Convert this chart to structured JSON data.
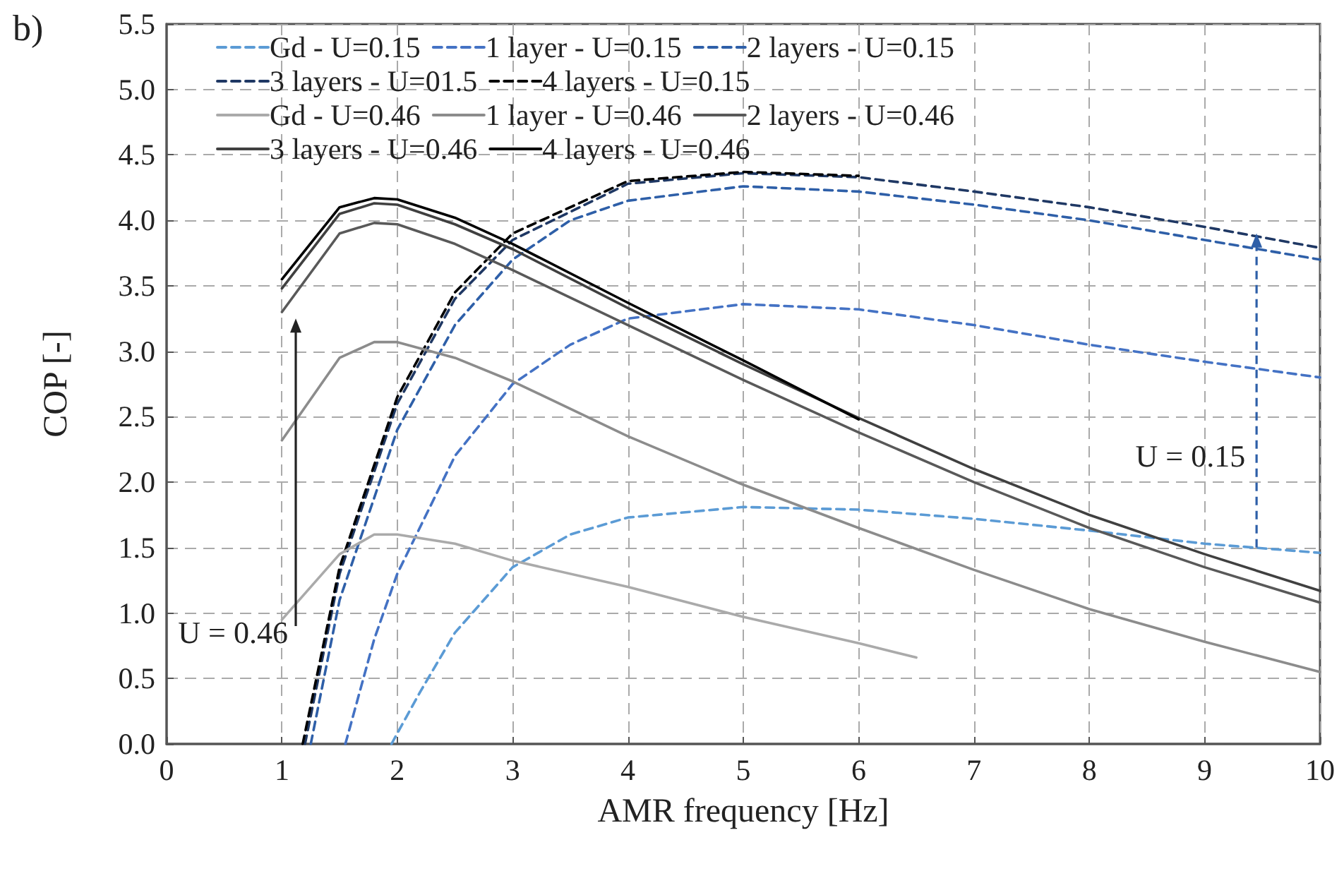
{
  "chart_data": {
    "type": "line",
    "title": "b)",
    "xlabel": "AMR frequency [Hz]",
    "ylabel": "COP [-]",
    "xlim": [
      0,
      10
    ],
    "xticks": [
      0,
      1,
      2,
      3,
      4,
      5,
      6,
      7,
      8,
      9,
      10
    ],
    "ylim": [
      0,
      5.5
    ],
    "yticks": [
      {
        "value": 0,
        "label": "0.0"
      },
      {
        "value": 0.5,
        "label": "0.5"
      },
      {
        "value": 1,
        "label": "1.0"
      },
      {
        "value": 1.5,
        "label": "1.5"
      },
      {
        "value": 2,
        "label": "2.0"
      },
      {
        "value": 2.5,
        "label": "2.5"
      },
      {
        "value": 3,
        "label": "3.0"
      },
      {
        "value": 3.5,
        "label": "3.5"
      },
      {
        "value": 4,
        "label": "4.0"
      },
      {
        "value": 4.5,
        "label": "4.5"
      },
      {
        "value": 5,
        "label": "5.0"
      },
      {
        "value": 5.5,
        "label": "5.5"
      }
    ],
    "grid": true,
    "legend": "top",
    "marker": "none",
    "annotations": [
      "U = 0.46",
      "U = 0.15"
    ],
    "series": [
      {
        "name": "Gd - U=0.15",
        "color": "#5b9bd5",
        "line_style": "dashed",
        "x": [
          1.95,
          2.2,
          2.5,
          3,
          3.5,
          4,
          5,
          6,
          7,
          8,
          9,
          10
        ],
        "values": [
          0,
          0.4,
          0.85,
          1.35,
          1.6,
          1.73,
          1.81,
          1.79,
          1.72,
          1.63,
          1.53,
          1.46
        ]
      },
      {
        "name": "1 layer - U=0.15",
        "color": "#4472c4",
        "line_style": "dashed",
        "x": [
          1.55,
          1.8,
          2,
          2.5,
          3,
          3.5,
          4,
          5,
          6,
          7,
          8,
          9,
          10
        ],
        "values": [
          0,
          0.8,
          1.3,
          2.2,
          2.75,
          3.05,
          3.25,
          3.36,
          3.32,
          3.2,
          3.05,
          2.92,
          2.8
        ]
      },
      {
        "name": "2 layers - U=0.15",
        "color": "#2e5fa8",
        "line_style": "dashed",
        "x": [
          1.25,
          1.5,
          2,
          2.5,
          3,
          3.5,
          4,
          5,
          6,
          7,
          8,
          9,
          10
        ],
        "values": [
          0,
          1.1,
          2.4,
          3.2,
          3.7,
          4,
          4.15,
          4.26,
          4.22,
          4.12,
          4,
          3.85,
          3.7
        ]
      },
      {
        "name": "3 layers - U=01.5",
        "color": "#1f3864",
        "line_style": "dashed",
        "x": [
          1.2,
          1.5,
          2,
          2.5,
          3,
          4,
          5,
          6,
          7,
          8,
          9,
          10
        ],
        "values": [
          0,
          1.3,
          2.6,
          3.4,
          3.85,
          4.28,
          4.36,
          4.33,
          4.22,
          4.1,
          3.95,
          3.79
        ]
      },
      {
        "name": "4 layers - U=0.15",
        "color": "#000000",
        "line_style": "dashed",
        "x": [
          1.18,
          1.5,
          2,
          2.5,
          3,
          4,
          5,
          6
        ],
        "values": [
          0,
          1.35,
          2.65,
          3.45,
          3.9,
          4.3,
          4.37,
          4.34
        ]
      },
      {
        "name": "Gd - U=0.46",
        "color": "#aaaaaa",
        "line_style": "solid",
        "x": [
          1,
          1.5,
          1.8,
          2,
          2.5,
          3,
          4,
          5,
          6,
          6.5
        ],
        "values": [
          0.95,
          1.45,
          1.6,
          1.6,
          1.53,
          1.4,
          1.2,
          0.97,
          0.77,
          0.66
        ]
      },
      {
        "name": "1 layer - U=0.46",
        "color": "#8c8c8c",
        "line_style": "solid",
        "x": [
          1,
          1.5,
          1.8,
          2,
          2.5,
          3,
          4,
          5,
          6,
          7,
          8,
          9,
          10
        ],
        "values": [
          2.32,
          2.95,
          3.07,
          3.07,
          2.95,
          2.77,
          2.35,
          1.98,
          1.65,
          1.33,
          1.03,
          0.78,
          0.55
        ]
      },
      {
        "name": "2 layers - U=0.46",
        "color": "#595959",
        "line_style": "solid",
        "x": [
          1,
          1.5,
          1.8,
          2,
          2.5,
          3,
          4,
          5,
          6,
          7,
          8,
          9,
          10
        ],
        "values": [
          3.3,
          3.9,
          3.98,
          3.97,
          3.82,
          3.62,
          3.2,
          2.78,
          2.38,
          2,
          1.65,
          1.35,
          1.08
        ]
      },
      {
        "name": "3 layers - U=0.46",
        "color": "#404040",
        "line_style": "solid",
        "x": [
          1,
          1.5,
          1.8,
          2,
          2.5,
          3,
          4,
          5,
          6,
          7,
          8,
          9,
          10
        ],
        "values": [
          3.48,
          4.05,
          4.13,
          4.12,
          3.97,
          3.78,
          3.33,
          2.9,
          2.49,
          2.1,
          1.75,
          1.45,
          1.17
        ]
      },
      {
        "name": "4 layers - U=0.46",
        "color": "#000000",
        "line_style": "solid",
        "x": [
          1,
          1.5,
          1.8,
          2,
          2.5,
          3,
          4,
          5,
          6
        ],
        "values": [
          3.55,
          4.1,
          4.17,
          4.16,
          4.02,
          3.82,
          3.37,
          2.93,
          2.48
        ]
      }
    ]
  }
}
